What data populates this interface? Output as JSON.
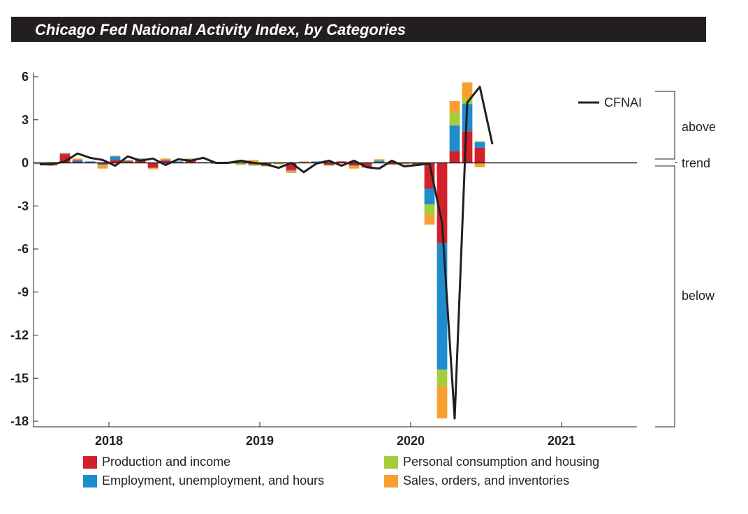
{
  "chart_data": {
    "type": "bar",
    "title": "Chicago Fed National Activity Index, by Categories",
    "y_ticks": [
      "6",
      "3",
      "0",
      "-3",
      "-6",
      "-9",
      "-12",
      "-15",
      "-18"
    ],
    "ylim": [
      -18.2,
      6.3
    ],
    "x_ticks": [
      "2018",
      "2019",
      "2020",
      "2021"
    ],
    "x_start": "2017-07",
    "x_end": "2021-06",
    "trend_labels": {
      "above": "above",
      "trend": "trend",
      "below": "below"
    },
    "line_series": {
      "name": "CFNAI",
      "color": "#231f20"
    },
    "stack_series": [
      {
        "name": "Production and income",
        "color": "#d3202a"
      },
      {
        "name": "Employment, unemployment, and hours",
        "color": "#1f8ccd"
      },
      {
        "name": "Personal consumption and housing",
        "color": "#a3cd3a"
      },
      {
        "name": "Sales, orders, and inventories",
        "color": "#f7a030"
      }
    ],
    "months": [
      "2017-07",
      "2017-08",
      "2017-09",
      "2017-10",
      "2017-11",
      "2017-12",
      "2018-01",
      "2018-02",
      "2018-03",
      "2018-04",
      "2018-05",
      "2018-06",
      "2018-07",
      "2018-08",
      "2018-09",
      "2018-10",
      "2018-11",
      "2018-12",
      "2019-01",
      "2019-02",
      "2019-03",
      "2019-04",
      "2019-05",
      "2019-06",
      "2019-07",
      "2019-08",
      "2019-09",
      "2019-10",
      "2019-11",
      "2019-12",
      "2020-01",
      "2020-02",
      "2020-03",
      "2020-04",
      "2020-05",
      "2020-06",
      "2020-07"
    ],
    "stack_values": [
      [
        0.02,
        0.05,
        0.6,
        0.1,
        0.05,
        -0.1,
        0.2,
        0.1,
        0.25,
        -0.35,
        0.15,
        0.05,
        0.2,
        0.05,
        -0.05,
        0.08,
        0.0,
        -0.1,
        -0.2,
        -0.05,
        -0.5,
        0.0,
        0.05,
        -0.15,
        0.1,
        -0.2,
        -0.3,
        0.05,
        -0.1,
        -0.05,
        -0.08,
        -1.8,
        -5.6,
        0.8,
        2.2,
        1.05,
        0.0
      ],
      [
        -0.05,
        0.0,
        0.05,
        0.1,
        0.05,
        -0.05,
        0.25,
        0.05,
        0.05,
        0.0,
        0.05,
        0.05,
        0.05,
        0.0,
        0.05,
        0.0,
        0.0,
        0.0,
        0.0,
        0.0,
        -0.05,
        0.05,
        0.05,
        0.0,
        0.0,
        0.0,
        0.0,
        0.1,
        0.0,
        0.0,
        -0.02,
        -1.1,
        -8.8,
        1.8,
        1.9,
        0.4,
        0.0
      ],
      [
        -0.02,
        -0.05,
        0.0,
        0.0,
        0.0,
        -0.05,
        0.0,
        0.0,
        0.0,
        -0.05,
        0.0,
        0.0,
        0.0,
        0.0,
        0.0,
        0.0,
        -0.15,
        -0.1,
        -0.05,
        -0.05,
        0.0,
        0.0,
        0.0,
        -0.05,
        0.0,
        -0.05,
        -0.05,
        0.0,
        -0.05,
        -0.05,
        -0.02,
        -0.7,
        -1.2,
        0.9,
        0.4,
        0.05,
        0.0
      ],
      [
        -0.03,
        -0.15,
        0.05,
        0.1,
        0.0,
        -0.2,
        0.05,
        0.05,
        0.0,
        -0.05,
        0.1,
        0.0,
        0.05,
        0.0,
        0.0,
        0.0,
        0.0,
        0.2,
        0.0,
        0.0,
        -0.15,
        0.05,
        0.0,
        0.0,
        0.0,
        -0.15,
        0.0,
        0.1,
        0.0,
        0.0,
        0.0,
        -0.7,
        -2.2,
        0.8,
        1.1,
        -0.3,
        0.0
      ]
    ],
    "cfnai": [
      -0.1,
      -0.1,
      0.1,
      0.65,
      0.35,
      0.2,
      -0.2,
      0.45,
      0.15,
      0.3,
      -0.15,
      0.25,
      0.15,
      0.35,
      0.0,
      0.0,
      0.15,
      0.0,
      -0.1,
      -0.35,
      0.0,
      -0.65,
      -0.05,
      0.15,
      -0.2,
      0.15,
      -0.3,
      -0.4,
      0.15,
      -0.25,
      -0.15,
      -0.05,
      -4.2,
      -17.8,
      4.2,
      5.3,
      1.3
    ],
    "yref": 0
  }
}
